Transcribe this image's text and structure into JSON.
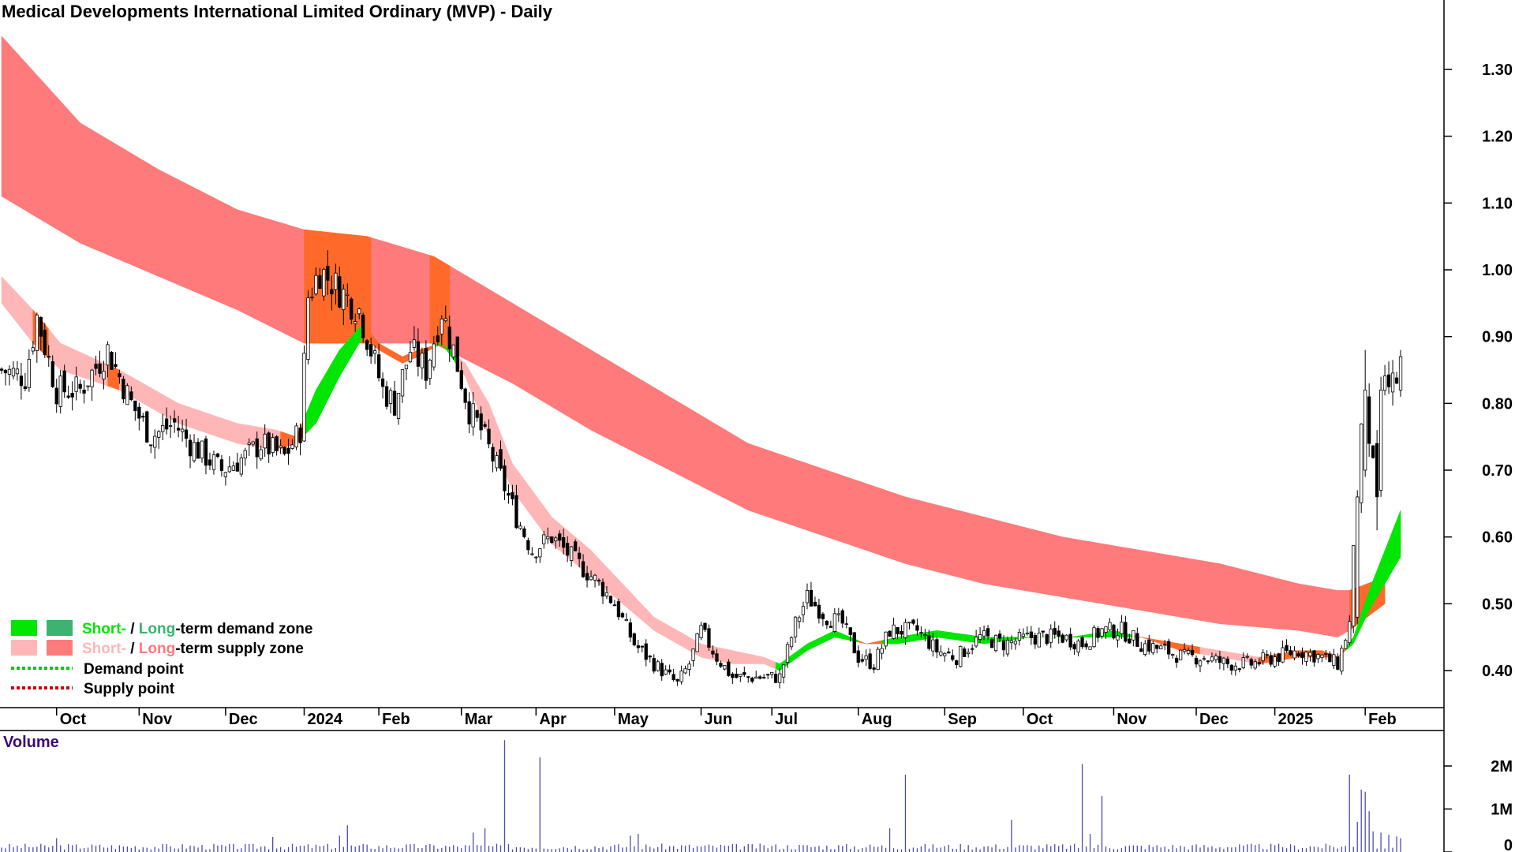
{
  "title": "Medical Developments International Limited Ordinary (MVP) - Daily",
  "legend": {
    "demand_zone": {
      "short": "Short-",
      "sep": " / ",
      "long": "Long",
      "rest": "-term demand zone"
    },
    "supply_zone": {
      "short": "Short-",
      "sep": " / ",
      "long": "Long",
      "rest": "-term supply zone"
    },
    "demand_point": "Demand point",
    "supply_point": "Supply point"
  },
  "colors": {
    "short_demand": "#00e600",
    "long_demand": "#3cb371",
    "short_supply": "#ffb6b6",
    "long_supply": "#ff7a7a",
    "conflict": "#ff6a2a",
    "demand_point": "#00cc00",
    "supply_point": "#cc0000",
    "volume_bar": "#4b4bb4",
    "volume_title": "#3a0a7a"
  },
  "chart_data": {
    "type": "candlestick",
    "ylim": [
      0.33,
      1.38
    ],
    "yticks": [
      "1.30",
      "1.20",
      "1.10",
      "1.00",
      "0.90",
      "0.80",
      "0.70",
      "0.60",
      "0.50",
      "0.40"
    ],
    "x_months": [
      {
        "label": "Oct",
        "idx": 14
      },
      {
        "label": "Nov",
        "idx": 35
      },
      {
        "label": "Dec",
        "idx": 57
      },
      {
        "label": "2024",
        "idx": 77
      },
      {
        "label": "Feb",
        "idx": 96
      },
      {
        "label": "Mar",
        "idx": 117
      },
      {
        "label": "Apr",
        "idx": 136
      },
      {
        "label": "May",
        "idx": 156
      },
      {
        "label": "Jun",
        "idx": 178
      },
      {
        "label": "Jul",
        "idx": 196
      },
      {
        "label": "Aug",
        "idx": 218
      },
      {
        "label": "Sep",
        "idx": 240
      },
      {
        "label": "Oct",
        "idx": 260
      },
      {
        "label": "Nov",
        "idx": 283
      },
      {
        "label": "Dec",
        "idx": 304
      },
      {
        "label": "2025",
        "idx": 324
      },
      {
        "label": "Feb",
        "idx": 347
      }
    ],
    "close_anchors": [
      [
        0,
        0.85
      ],
      [
        6,
        0.84
      ],
      [
        9,
        0.93
      ],
      [
        14,
        0.82
      ],
      [
        20,
        0.82
      ],
      [
        27,
        0.88
      ],
      [
        33,
        0.8
      ],
      [
        38,
        0.75
      ],
      [
        44,
        0.77
      ],
      [
        48,
        0.74
      ],
      [
        56,
        0.7
      ],
      [
        62,
        0.72
      ],
      [
        66,
        0.74
      ],
      [
        72,
        0.72
      ],
      [
        76,
        0.76
      ],
      [
        78,
        0.96
      ],
      [
        81,
        1.0
      ],
      [
        86,
        0.97
      ],
      [
        91,
        0.94
      ],
      [
        97,
        0.82
      ],
      [
        100,
        0.8
      ],
      [
        104,
        0.88
      ],
      [
        108,
        0.85
      ],
      [
        112,
        0.94
      ],
      [
        115,
        0.88
      ],
      [
        119,
        0.79
      ],
      [
        122,
        0.76
      ],
      [
        127,
        0.69
      ],
      [
        131,
        0.63
      ],
      [
        135,
        0.58
      ],
      [
        140,
        0.6
      ],
      [
        145,
        0.57
      ],
      [
        152,
        0.53
      ],
      [
        156,
        0.5
      ],
      [
        161,
        0.44
      ],
      [
        166,
        0.41
      ],
      [
        172,
        0.38
      ],
      [
        175,
        0.41
      ],
      [
        178,
        0.46
      ],
      [
        182,
        0.42
      ],
      [
        186,
        0.39
      ],
      [
        192,
        0.39
      ],
      [
        198,
        0.39
      ],
      [
        202,
        0.47
      ],
      [
        205,
        0.51
      ],
      [
        210,
        0.48
      ],
      [
        214,
        0.47
      ],
      [
        218,
        0.42
      ],
      [
        222,
        0.41
      ],
      [
        226,
        0.46
      ],
      [
        233,
        0.46
      ],
      [
        238,
        0.43
      ],
      [
        243,
        0.42
      ],
      [
        249,
        0.45
      ],
      [
        255,
        0.44
      ],
      [
        262,
        0.45
      ],
      [
        270,
        0.45
      ],
      [
        275,
        0.44
      ],
      [
        280,
        0.46
      ],
      [
        285,
        0.46
      ],
      [
        290,
        0.44
      ],
      [
        296,
        0.43
      ],
      [
        301,
        0.42
      ],
      [
        306,
        0.42
      ],
      [
        312,
        0.41
      ],
      [
        318,
        0.41
      ],
      [
        324,
        0.42
      ],
      [
        330,
        0.43
      ],
      [
        336,
        0.42
      ],
      [
        340,
        0.41
      ],
      [
        343,
        0.47
      ],
      [
        346,
        0.78
      ],
      [
        349,
        0.7
      ],
      [
        352,
        0.82
      ],
      [
        354,
        0.83
      ],
      [
        356,
        0.84
      ]
    ],
    "candles": {
      "count": 357,
      "seed": 7,
      "spikes": [
        {
          "idx": 345,
          "open": 0.48,
          "close": 0.66,
          "high": 0.67,
          "low": 0.47
        },
        {
          "idx": 347,
          "open": 0.7,
          "close": 0.82,
          "high": 0.88,
          "low": 0.69
        },
        {
          "idx": 348,
          "open": 0.81,
          "close": 0.74,
          "high": 0.83,
          "low": 0.72
        },
        {
          "idx": 350,
          "open": 0.74,
          "close": 0.66,
          "high": 0.76,
          "low": 0.61
        },
        {
          "idx": 351,
          "open": 0.67,
          "close": 0.82,
          "high": 0.84,
          "low": 0.66
        },
        {
          "idx": 356,
          "open": 0.82,
          "close": 0.87,
          "high": 0.88,
          "low": 0.81
        }
      ]
    },
    "long_term_zone": {
      "upper": [
        [
          0,
          1.35
        ],
        [
          20,
          1.22
        ],
        [
          40,
          1.15
        ],
        [
          60,
          1.09
        ],
        [
          77,
          1.06
        ],
        [
          93,
          1.05
        ],
        [
          110,
          1.02
        ],
        [
          130,
          0.95
        ],
        [
          150,
          0.88
        ],
        [
          170,
          0.81
        ],
        [
          190,
          0.74
        ],
        [
          210,
          0.7
        ],
        [
          230,
          0.66
        ],
        [
          250,
          0.63
        ],
        [
          270,
          0.6
        ],
        [
          290,
          0.58
        ],
        [
          310,
          0.56
        ],
        [
          330,
          0.53
        ],
        [
          340,
          0.52
        ],
        [
          343,
          0.52
        ],
        [
          352,
          0.54
        ]
      ],
      "lower": [
        [
          0,
          1.11
        ],
        [
          20,
          1.04
        ],
        [
          40,
          0.99
        ],
        [
          60,
          0.94
        ],
        [
          77,
          0.89
        ],
        [
          93,
          0.89
        ],
        [
          110,
          0.89
        ],
        [
          130,
          0.83
        ],
        [
          150,
          0.76
        ],
        [
          170,
          0.7
        ],
        [
          190,
          0.64
        ],
        [
          210,
          0.6
        ],
        [
          230,
          0.56
        ],
        [
          250,
          0.53
        ],
        [
          270,
          0.51
        ],
        [
          290,
          0.49
        ],
        [
          310,
          0.47
        ],
        [
          330,
          0.46
        ],
        [
          340,
          0.45
        ],
        [
          343,
          0.46
        ],
        [
          352,
          0.5
        ]
      ],
      "conflict_ranges": [
        [
          77,
          94
        ],
        [
          109,
          114
        ],
        [
          343,
          352
        ]
      ]
    },
    "short_term_zone": {
      "upper": [
        [
          0,
          0.99
        ],
        [
          8,
          0.94
        ],
        [
          15,
          0.89
        ],
        [
          30,
          0.85
        ],
        [
          45,
          0.8
        ],
        [
          60,
          0.77
        ],
        [
          70,
          0.76
        ],
        [
          75,
          0.75
        ],
        [
          80,
          0.82
        ],
        [
          86,
          0.88
        ],
        [
          92,
          0.92
        ],
        [
          96,
          0.89
        ],
        [
          102,
          0.87
        ],
        [
          106,
          0.88
        ],
        [
          112,
          0.89
        ],
        [
          118,
          0.86
        ],
        [
          124,
          0.8
        ],
        [
          130,
          0.71
        ],
        [
          140,
          0.63
        ],
        [
          150,
          0.58
        ],
        [
          158,
          0.53
        ],
        [
          166,
          0.48
        ],
        [
          172,
          0.46
        ],
        [
          178,
          0.44
        ],
        [
          186,
          0.43
        ],
        [
          194,
          0.42
        ],
        [
          198,
          0.41
        ],
        [
          205,
          0.44
        ],
        [
          212,
          0.46
        ],
        [
          220,
          0.44
        ],
        [
          228,
          0.45
        ],
        [
          238,
          0.46
        ],
        [
          250,
          0.45
        ],
        [
          262,
          0.45
        ],
        [
          272,
          0.45
        ],
        [
          283,
          0.46
        ],
        [
          290,
          0.45
        ],
        [
          300,
          0.44
        ],
        [
          310,
          0.43
        ],
        [
          320,
          0.42
        ],
        [
          330,
          0.43
        ],
        [
          336,
          0.43
        ],
        [
          340,
          0.42
        ],
        [
          344,
          0.45
        ],
        [
          348,
          0.52
        ],
        [
          352,
          0.58
        ],
        [
          356,
          0.64
        ]
      ],
      "lower": [
        [
          0,
          0.95
        ],
        [
          8,
          0.89
        ],
        [
          15,
          0.85
        ],
        [
          30,
          0.82
        ],
        [
          45,
          0.77
        ],
        [
          60,
          0.74
        ],
        [
          70,
          0.73
        ],
        [
          75,
          0.74
        ],
        [
          80,
          0.77
        ],
        [
          86,
          0.84
        ],
        [
          92,
          0.9
        ],
        [
          96,
          0.88
        ],
        [
          102,
          0.86
        ],
        [
          106,
          0.87
        ],
        [
          112,
          0.89
        ],
        [
          118,
          0.84
        ],
        [
          124,
          0.75
        ],
        [
          130,
          0.67
        ],
        [
          140,
          0.59
        ],
        [
          150,
          0.54
        ],
        [
          158,
          0.5
        ],
        [
          166,
          0.46
        ],
        [
          172,
          0.44
        ],
        [
          178,
          0.42
        ],
        [
          186,
          0.41
        ],
        [
          194,
          0.41
        ],
        [
          198,
          0.4
        ],
        [
          205,
          0.43
        ],
        [
          212,
          0.45
        ],
        [
          220,
          0.44
        ],
        [
          228,
          0.44
        ],
        [
          238,
          0.45
        ],
        [
          250,
          0.44
        ],
        [
          262,
          0.45
        ],
        [
          272,
          0.45
        ],
        [
          283,
          0.45
        ],
        [
          290,
          0.45
        ],
        [
          300,
          0.43
        ],
        [
          310,
          0.42
        ],
        [
          320,
          0.41
        ],
        [
          330,
          0.42
        ],
        [
          336,
          0.42
        ],
        [
          340,
          0.42
        ],
        [
          344,
          0.44
        ],
        [
          348,
          0.49
        ],
        [
          352,
          0.53
        ],
        [
          356,
          0.57
        ]
      ],
      "regimes": [
        {
          "from": 0,
          "to": 8,
          "kind": "supply"
        },
        {
          "from": 8,
          "to": 12,
          "kind": "conflict"
        },
        {
          "from": 12,
          "to": 27,
          "kind": "supply"
        },
        {
          "from": 27,
          "to": 30,
          "kind": "conflict"
        },
        {
          "from": 30,
          "to": 71,
          "kind": "supply"
        },
        {
          "from": 71,
          "to": 77,
          "kind": "conflict"
        },
        {
          "from": 77,
          "to": 92,
          "kind": "demand"
        },
        {
          "from": 92,
          "to": 110,
          "kind": "conflict"
        },
        {
          "from": 110,
          "to": 116,
          "kind": "demand"
        },
        {
          "from": 116,
          "to": 197,
          "kind": "supply"
        },
        {
          "from": 197,
          "to": 218,
          "kind": "demand"
        },
        {
          "from": 218,
          "to": 224,
          "kind": "conflict"
        },
        {
          "from": 224,
          "to": 288,
          "kind": "demand"
        },
        {
          "from": 288,
          "to": 305,
          "kind": "conflict"
        },
        {
          "from": 305,
          "to": 320,
          "kind": "supply"
        },
        {
          "from": 320,
          "to": 342,
          "kind": "conflict"
        },
        {
          "from": 342,
          "to": 356,
          "kind": "demand"
        }
      ]
    },
    "volume": {
      "title": "Volume",
      "ylim": [
        0,
        2.8
      ],
      "yticks": [
        {
          "label": "2M",
          "value": 2
        },
        {
          "label": "1M",
          "value": 1
        },
        {
          "label": "0",
          "value": 0
        }
      ],
      "baseline": 0.14,
      "spikes": [
        [
          14,
          0.32
        ],
        [
          69,
          0.35
        ],
        [
          86,
          0.38
        ],
        [
          88,
          0.62
        ],
        [
          120,
          0.45
        ],
        [
          123,
          0.55
        ],
        [
          128,
          2.6
        ],
        [
          137,
          2.2
        ],
        [
          160,
          0.38
        ],
        [
          162,
          0.42
        ],
        [
          226,
          0.55
        ],
        [
          230,
          1.8
        ],
        [
          257,
          0.75
        ],
        [
          275,
          2.05
        ],
        [
          277,
          0.42
        ],
        [
          280,
          1.3
        ],
        [
          343,
          1.8
        ],
        [
          345,
          0.7
        ],
        [
          346,
          1.45
        ],
        [
          347,
          1.4
        ],
        [
          348,
          0.95
        ],
        [
          349,
          0.48
        ],
        [
          351,
          0.45
        ],
        [
          353,
          0.4
        ],
        [
          355,
          0.36
        ],
        [
          356,
          0.32
        ]
      ]
    }
  }
}
